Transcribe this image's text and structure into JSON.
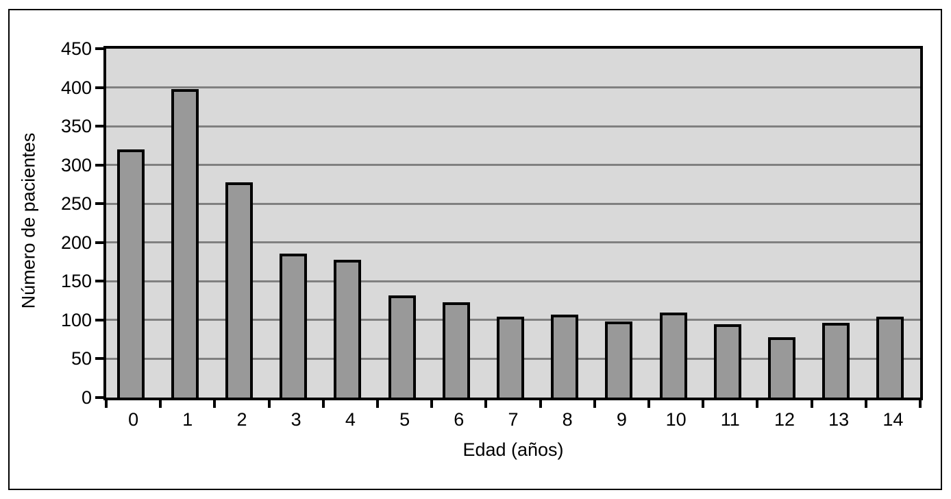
{
  "chart_data": {
    "type": "bar",
    "title": "",
    "categories": [
      "0",
      "1",
      "2",
      "3",
      "4",
      "5",
      "6",
      "7",
      "8",
      "9",
      "10",
      "11",
      "12",
      "13",
      "14"
    ],
    "values": [
      320,
      398,
      278,
      186,
      178,
      132,
      123,
      104,
      107,
      98,
      110,
      95,
      78,
      96,
      104
    ],
    "xlabel": "Edad (años)",
    "ylabel": "Número de pacientes",
    "ylim": [
      0,
      450
    ],
    "ytick_step": 50,
    "ytick_labels": [
      "0",
      "50",
      "100",
      "150",
      "200",
      "250",
      "300",
      "350",
      "400",
      "450"
    ],
    "grid": true,
    "legend": false,
    "colors": {
      "bar_fill": "#999999",
      "bar_border": "#000000",
      "plot_background": "#d9d9d9",
      "gridline": "#808080",
      "axis": "#000000",
      "page_frame": "#000000",
      "page_background": "#ffffff",
      "text": "#000000"
    }
  }
}
